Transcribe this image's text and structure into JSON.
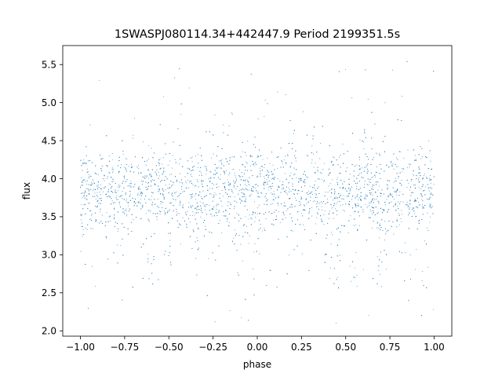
{
  "chart_data": {
    "type": "scatter",
    "title": "1SWASPJ080114.34+442447.9 Period 2199351.5s",
    "xlabel": "phase",
    "ylabel": "flux",
    "xlim": [
      -1.1,
      1.1
    ],
    "ylim": [
      1.93,
      5.75
    ],
    "x_ticks": [
      -1.0,
      -0.75,
      -0.5,
      -0.25,
      0.0,
      0.25,
      0.5,
      0.75,
      1.0
    ],
    "x_tick_labels": [
      "−1.00",
      "−0.75",
      "−0.50",
      "−0.25",
      "0.00",
      "0.25",
      "0.50",
      "0.75",
      "1.00"
    ],
    "y_ticks": [
      2.0,
      2.5,
      3.0,
      3.5,
      4.0,
      4.5,
      5.0,
      5.5
    ],
    "y_tick_labels": [
      "2.0",
      "2.5",
      "3.0",
      "3.5",
      "4.0",
      "4.5",
      "5.0",
      "5.5"
    ],
    "grid": false,
    "series": [
      {
        "x_range": [
          -1.0,
          1.0
        ],
        "y_center": 3.85,
        "y_core_spread": 0.3,
        "y_envelope": [
          2.1,
          5.65
        ],
        "color": "#1f77b4",
        "dense_dip_phases": [
          -0.6,
          -0.5,
          -0.35,
          -0.1,
          0.0,
          0.4,
          0.45,
          0.55,
          0.7,
          0.85,
          0.95
        ]
      }
    ]
  }
}
